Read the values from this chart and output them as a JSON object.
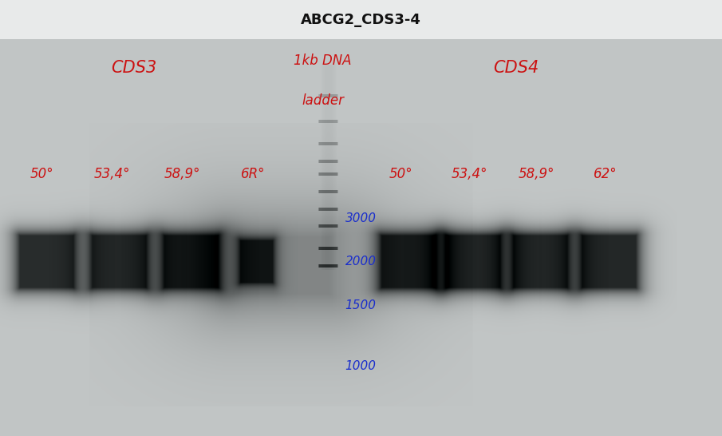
{
  "bg_color": "#c8cacb",
  "title": "ABCG2_CDS3-4",
  "title_fontsize": 13,
  "title_color": "#111111",
  "top_bar_color": "#e0e2e3",
  "gel_bg": "#bfc1c2",
  "left_group_label": "CDS3",
  "right_group_label": "CDS4",
  "label_color": "#cc1111",
  "ladder_label_line1": "1kb DNA",
  "ladder_label_line2": "ladder",
  "ladder_label_color": "#cc1111",
  "ladder_marks": [
    "3000",
    "2000",
    "1500",
    "1000"
  ],
  "ladder_mark_color": "#1a2ecc",
  "left_temp_labels": [
    "50°",
    "53,4°",
    "58,9°",
    "6R°"
  ],
  "right_temp_labels": [
    "50°",
    "53,4°",
    "58,9°",
    "62°"
  ],
  "temp_label_color": "#cc1111",
  "fig_width": 9.05,
  "fig_height": 5.46,
  "dpi": 100
}
